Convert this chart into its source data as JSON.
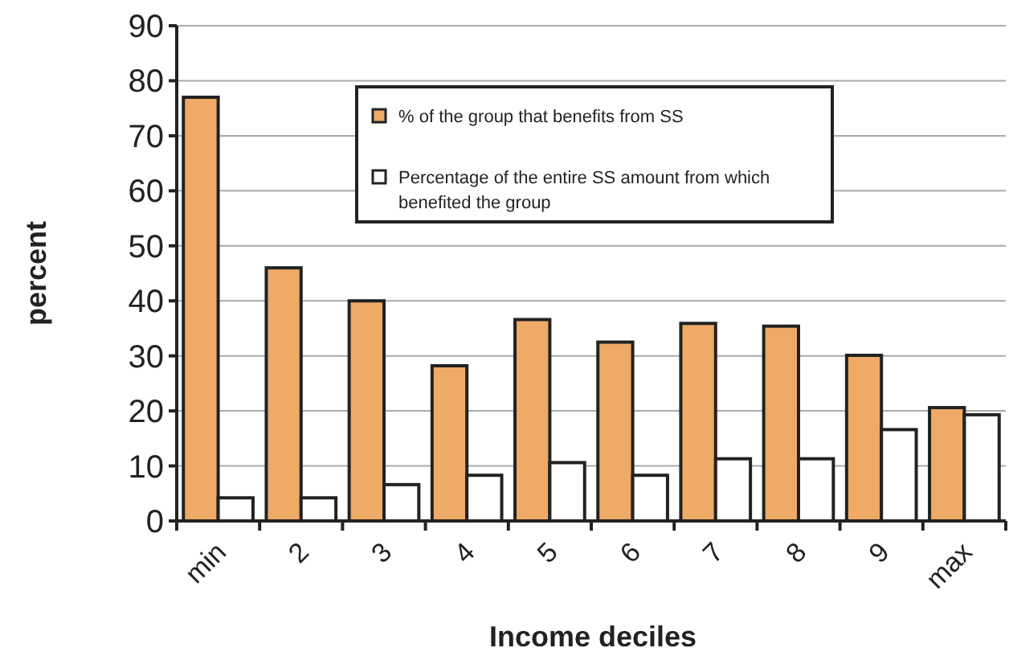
{
  "chart_data": {
    "type": "bar",
    "xlabel": "Income deciles",
    "ylabel": "percent",
    "categories": [
      "min",
      "2",
      "3",
      "4",
      "5",
      "6",
      "7",
      "8",
      "9",
      "max"
    ],
    "series": [
      {
        "name": "% of the group that benefits from SS",
        "color": "#eeaa66",
        "values": [
          77,
          46,
          40,
          28.2,
          36.6,
          32.5,
          35.9,
          35.4,
          30.1,
          20.6
        ]
      },
      {
        "name": "Percentage of the entire SS amount from which benefited the group",
        "color": "#ffffff",
        "values": [
          4.2,
          4.2,
          6.6,
          8.3,
          10.6,
          8.3,
          11.3,
          11.3,
          16.6,
          19.3
        ]
      }
    ],
    "ylim": [
      0,
      90
    ],
    "yticks": [
      0,
      10,
      20,
      30,
      40,
      50,
      60,
      70,
      80,
      90
    ],
    "grid": "y",
    "legend": "top right"
  }
}
